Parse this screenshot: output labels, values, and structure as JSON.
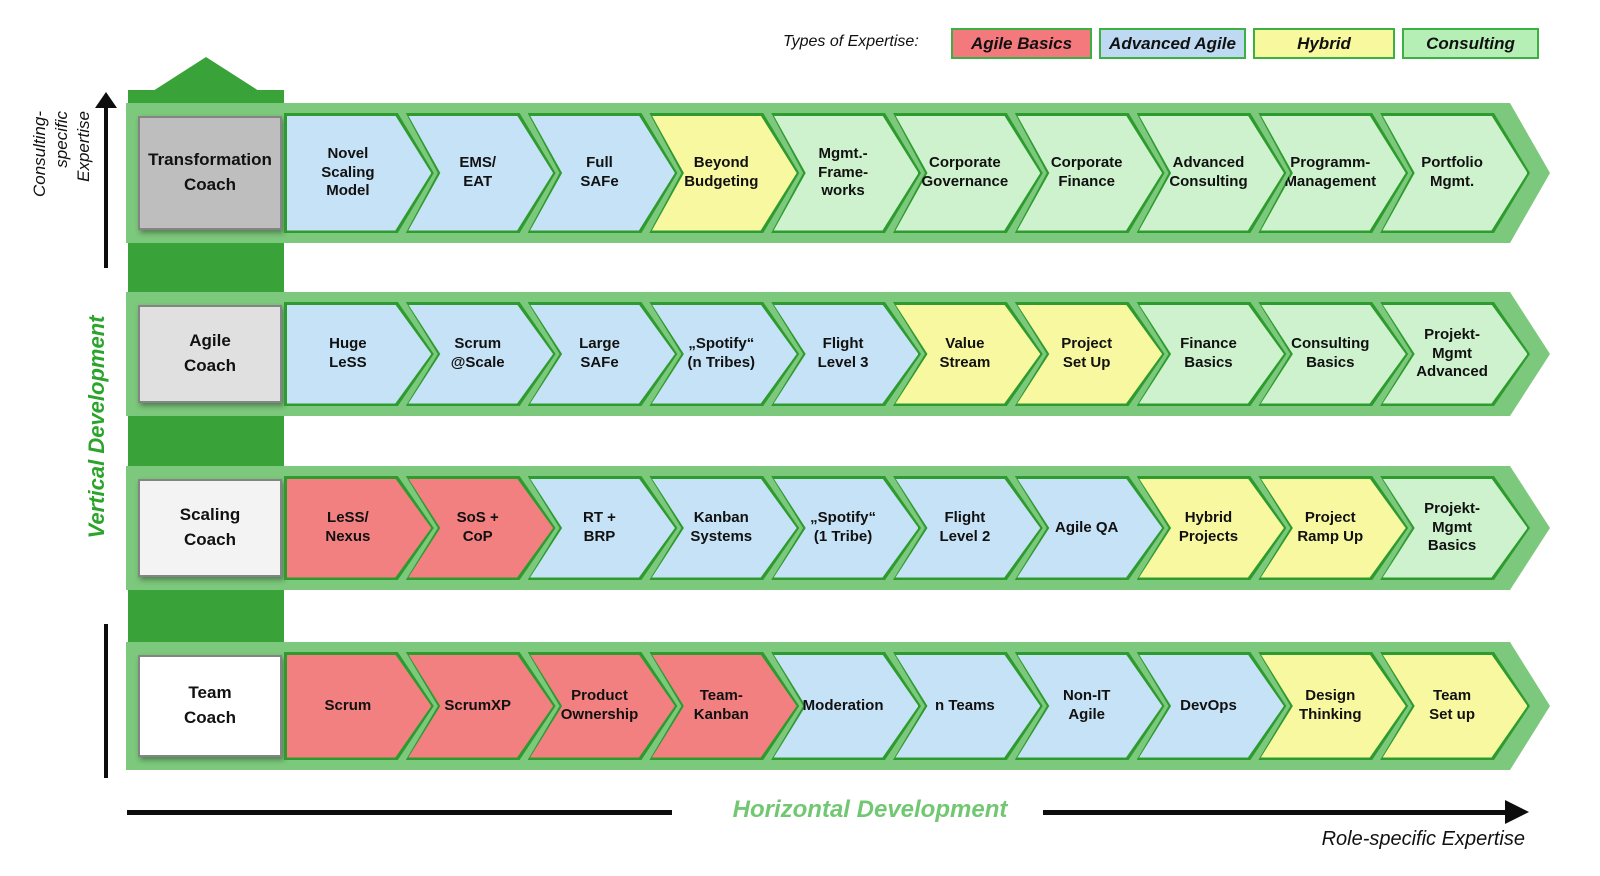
{
  "legend": {
    "title": "Types of Expertise:",
    "border_color": "#3db043",
    "items": [
      {
        "label": "Agile Basics",
        "type": "basics",
        "color": "#f4797d"
      },
      {
        "label": "Advanced Agile",
        "type": "advanced",
        "color": "#bedaf2"
      },
      {
        "label": "Hybrid",
        "type": "hybrid",
        "color": "#f8f89e"
      },
      {
        "label": "Consulting",
        "type": "consulting",
        "color": "#b6efb6"
      }
    ]
  },
  "types": {
    "basics": {
      "name": "Agile Basics",
      "color": "#f28080"
    },
    "advanced": {
      "name": "Advanced Agile",
      "color": "#c6e2f6"
    },
    "hybrid": {
      "name": "Hybrid",
      "color": "#f8f8a0"
    },
    "consulting": {
      "name": "Consulting",
      "color": "#cdf2cd"
    }
  },
  "axes": {
    "top_left_label": "Consulting-\nspecific\nExpertise",
    "left_label": "Vertical Development",
    "bottom_label": "Horizontal Development",
    "bottom_right_label": "Role-specific Expertise"
  },
  "colors": {
    "band_green": "#7cc87c",
    "arrow_green": "#39a339",
    "chevron_border_green": "#2e9b2e"
  },
  "rows": [
    {
      "coach": "Transformation\nCoach",
      "coach_color": "#bebebe",
      "skills": [
        {
          "label": "Novel\nScaling\nModel",
          "type": "advanced"
        },
        {
          "label": "EMS/\nEAT",
          "type": "advanced"
        },
        {
          "label": "Full\nSAFe",
          "type": "advanced"
        },
        {
          "label": "Beyond\nBudgeting",
          "type": "hybrid"
        },
        {
          "label": "Mgmt.-\nFrame-\nworks",
          "type": "consulting"
        },
        {
          "label": "Corporate\nGovernance",
          "type": "consulting"
        },
        {
          "label": "Corporate\nFinance",
          "type": "consulting"
        },
        {
          "label": "Advanced\nConsulting",
          "type": "consulting"
        },
        {
          "label": "Programm-\nManagement",
          "type": "consulting"
        },
        {
          "label": "Portfolio\nMgmt.",
          "type": "consulting"
        }
      ]
    },
    {
      "coach": "Agile\nCoach",
      "coach_color": "#e0e0e0",
      "skills": [
        {
          "label": "Huge\nLeSS",
          "type": "advanced"
        },
        {
          "label": "Scrum\n@Scale",
          "type": "advanced"
        },
        {
          "label": "Large\nSAFe",
          "type": "advanced"
        },
        {
          "label": "„Spotify“\n(n Tribes)",
          "type": "advanced"
        },
        {
          "label": "Flight\nLevel 3",
          "type": "advanced"
        },
        {
          "label": "Value\nStream",
          "type": "hybrid"
        },
        {
          "label": "Project\nSet Up",
          "type": "hybrid"
        },
        {
          "label": "Finance\nBasics",
          "type": "consulting"
        },
        {
          "label": "Consulting\nBasics",
          "type": "consulting"
        },
        {
          "label": "Projekt-\nMgmt\nAdvanced",
          "type": "consulting"
        }
      ]
    },
    {
      "coach": "Scaling\nCoach",
      "coach_color": "#f3f3f3",
      "skills": [
        {
          "label": "LeSS/\nNexus",
          "type": "basics"
        },
        {
          "label": "SoS +\nCoP",
          "type": "basics"
        },
        {
          "label": "RT +\nBRP",
          "type": "advanced"
        },
        {
          "label": "Kanban\nSystems",
          "type": "advanced"
        },
        {
          "label": "„Spotify“\n(1 Tribe)",
          "type": "advanced"
        },
        {
          "label": "Flight\nLevel 2",
          "type": "advanced"
        },
        {
          "label": "Agile QA",
          "type": "advanced"
        },
        {
          "label": "Hybrid\nProjects",
          "type": "hybrid"
        },
        {
          "label": "Project\nRamp Up",
          "type": "hybrid"
        },
        {
          "label": "Projekt-\nMgmt Basics",
          "type": "consulting"
        }
      ]
    },
    {
      "coach": "Team\nCoach",
      "coach_color": "#ffffff",
      "skills": [
        {
          "label": "Scrum",
          "type": "basics"
        },
        {
          "label": "ScrumXP",
          "type": "basics"
        },
        {
          "label": "Product\nOwnership",
          "type": "basics"
        },
        {
          "label": "Team-\nKanban",
          "type": "basics"
        },
        {
          "label": "Moderation",
          "type": "advanced"
        },
        {
          "label": "n Teams",
          "type": "advanced"
        },
        {
          "label": "Non-IT\nAgile",
          "type": "advanced"
        },
        {
          "label": "DevOps",
          "type": "advanced"
        },
        {
          "label": "Design\nThinking",
          "type": "hybrid"
        },
        {
          "label": "Team\nSet up",
          "type": "hybrid"
        }
      ]
    }
  ]
}
